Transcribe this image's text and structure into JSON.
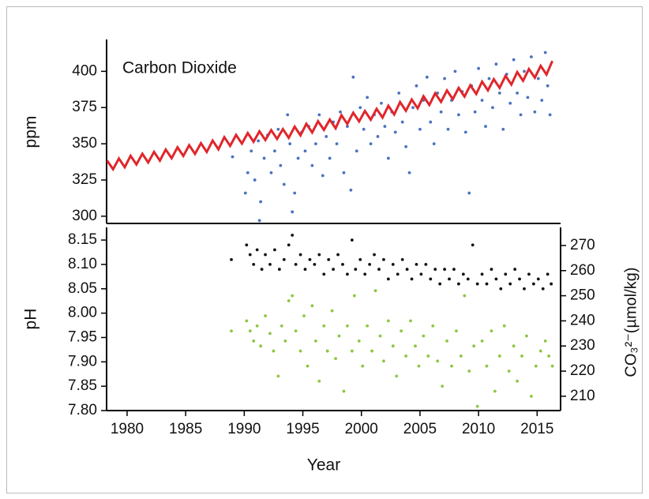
{
  "chart_data": [
    {
      "type": "scatter",
      "annotation": "Carbon Dioxide",
      "ylabel": "ppm",
      "xlim": [
        1978.25,
        2017
      ],
      "ylim": [
        295,
        422
      ],
      "yticks": [
        300,
        325,
        350,
        375,
        400
      ],
      "series": [
        {
          "mode": "line",
          "color": "#e0262b",
          "x": [
            1978.3,
            1978.8,
            1979.3,
            1979.8,
            1980.3,
            1980.8,
            1981.3,
            1981.8,
            1982.3,
            1982.8,
            1983.3,
            1983.8,
            1984.3,
            1984.8,
            1985.3,
            1985.8,
            1986.3,
            1986.8,
            1987.3,
            1987.8,
            1988.3,
            1988.8,
            1989.3,
            1989.8,
            1990.3,
            1990.8,
            1991.3,
            1991.8,
            1992.3,
            1992.8,
            1993.3,
            1993.8,
            1994.3,
            1994.8,
            1995.3,
            1995.8,
            1996.3,
            1996.8,
            1997.3,
            1997.8,
            1998.3,
            1998.8,
            1999.3,
            1999.8,
            2000.3,
            2000.8,
            2001.3,
            2001.8,
            2002.3,
            2002.8,
            2003.3,
            2003.8,
            2004.3,
            2004.8,
            2005.3,
            2005.8,
            2006.3,
            2006.8,
            2007.3,
            2007.8,
            2008.3,
            2008.8,
            2009.3,
            2009.8,
            2010.3,
            2010.8,
            2011.3,
            2011.8,
            2012.3,
            2012.8,
            2013.3,
            2013.8,
            2014.3,
            2014.8,
            2015.3,
            2015.8,
            2016.3
          ],
          "values": [
            338.4,
            332.4,
            339.8,
            333.8,
            341.7,
            335.7,
            343.1,
            337.1,
            344.4,
            338.4,
            346.0,
            340.0,
            347.6,
            341.6,
            349.0,
            343.0,
            350.4,
            344.4,
            352.2,
            346.2,
            354.6,
            348.6,
            356.1,
            350.1,
            357.4,
            351.4,
            358.6,
            352.6,
            359.4,
            353.4,
            360.1,
            354.1,
            361.8,
            355.8,
            363.8,
            357.8,
            365.6,
            359.6,
            366.7,
            360.7,
            369.7,
            363.7,
            371.4,
            365.4,
            372.6,
            366.6,
            374.1,
            368.1,
            376.2,
            370.2,
            378.8,
            372.8,
            380.5,
            374.5,
            382.8,
            376.8,
            384.9,
            378.9,
            386.8,
            380.8,
            388.6,
            382.6,
            390.4,
            384.4,
            392.9,
            386.9,
            394.6,
            388.6,
            396.9,
            390.9,
            399.5,
            393.5,
            401.6,
            395.6,
            403.8,
            397.8,
            407.2
          ]
        },
        {
          "mode": "points",
          "color": "#4a72c0",
          "x": [
            1989.0,
            1990.1,
            1990.3,
            1990.6,
            1990.9,
            1991.2,
            1991.3,
            1991.4,
            1991.7,
            1992.0,
            1992.3,
            1992.6,
            1992.9,
            1993.1,
            1993.4,
            1993.7,
            1993.9,
            1994.1,
            1994.3,
            1994.6,
            1994.9,
            1995.2,
            1995.5,
            1995.8,
            1996.1,
            1996.4,
            1996.7,
            1997.0,
            1997.3,
            1997.6,
            1997.9,
            1998.2,
            1998.5,
            1998.8,
            1999.1,
            1999.3,
            1999.6,
            1999.9,
            2000.2,
            2000.5,
            2000.8,
            2001.1,
            2001.4,
            2001.7,
            2002.0,
            2002.3,
            2002.6,
            2002.9,
            2003.2,
            2003.5,
            2003.8,
            2004.1,
            2004.4,
            2004.7,
            2005.0,
            2005.3,
            2005.6,
            2005.9,
            2006.2,
            2006.5,
            2006.8,
            2007.1,
            2007.4,
            2007.7,
            2008.0,
            2008.3,
            2008.6,
            2008.9,
            2009.2,
            2009.4,
            2009.7,
            2010.0,
            2010.3,
            2010.6,
            2010.9,
            2011.2,
            2011.5,
            2011.8,
            2012.1,
            2012.4,
            2012.7,
            2013.0,
            2013.3,
            2013.6,
            2013.9,
            2014.2,
            2014.5,
            2014.8,
            2015.1,
            2015.4,
            2015.7,
            2015.9,
            2016.1
          ],
          "values": [
            341,
            316,
            330,
            345,
            325,
            352,
            297,
            310,
            340,
            356,
            330,
            345,
            360,
            335,
            322,
            370,
            350,
            303,
            316,
            340,
            358,
            345,
            362,
            335,
            350,
            370,
            328,
            355,
            340,
            365,
            350,
            372,
            330,
            362,
            318,
            396,
            345,
            375,
            360,
            382,
            350,
            370,
            355,
            378,
            362,
            340,
            372,
            358,
            385,
            365,
            348,
            330,
            375,
            390,
            360,
            380,
            396,
            365,
            350,
            385,
            372,
            395,
            360,
            380,
            400,
            370,
            386,
            358,
            316,
            390,
            372,
            402,
            380,
            362,
            395,
            375,
            405,
            385,
            360,
            398,
            378,
            408,
            385,
            370,
            400,
            382,
            410,
            372,
            395,
            380,
            413,
            390,
            370
          ]
        }
      ]
    },
    {
      "type": "scatter",
      "ylabel": "pH",
      "y2label": "CO₃²⁻(µmol/kg)",
      "xlabel": "Year",
      "xlim": [
        1978.25,
        2017
      ],
      "xticks": [
        1980,
        1985,
        1990,
        1995,
        2000,
        2005,
        2010,
        2015
      ],
      "ylim": [
        7.8,
        8.176
      ],
      "yticks": [
        {
          "value": 7.8,
          "label": "7.80"
        },
        7.85,
        {
          "value": 7.9,
          "label": "7.90"
        },
        7.95,
        {
          "value": 8.0,
          "label": "8.00"
        },
        8.05,
        {
          "value": 8.1,
          "label": "8.10"
        },
        8.15
      ],
      "y2lim": [
        204.3,
        277.2
      ],
      "y2ticks": [
        210,
        220,
        230,
        240,
        250,
        260,
        270
      ],
      "y2color": "#4a9e20",
      "series": [
        {
          "mode": "points",
          "color": "#111111",
          "x": [
            1988.9,
            1990.2,
            1990.5,
            1990.8,
            1991.1,
            1991.5,
            1991.8,
            1992.2,
            1992.6,
            1993.0,
            1993.4,
            1993.8,
            1994.1,
            1994.4,
            1994.8,
            1995.2,
            1995.6,
            1996.0,
            1996.4,
            1996.8,
            1997.2,
            1997.6,
            1998.0,
            1998.4,
            1998.8,
            1999.2,
            1999.5,
            1999.9,
            2000.3,
            2000.7,
            2001.1,
            2001.5,
            2001.9,
            2002.3,
            2002.7,
            2003.1,
            2003.5,
            2003.9,
            2004.3,
            2004.7,
            2005.1,
            2005.5,
            2005.9,
            2006.3,
            2006.7,
            2007.1,
            2007.5,
            2007.9,
            2008.3,
            2008.7,
            2009.1,
            2009.5,
            2009.9,
            2010.3,
            2010.7,
            2011.1,
            2011.5,
            2011.9,
            2012.3,
            2012.7,
            2013.1,
            2013.5,
            2013.9,
            2014.3,
            2014.7,
            2015.1,
            2015.5,
            2015.9,
            2016.2
          ],
          "values": [
            8.11,
            8.14,
            8.12,
            8.1,
            8.13,
            8.09,
            8.12,
            8.1,
            8.13,
            8.09,
            8.11,
            8.14,
            8.16,
            8.1,
            8.12,
            8.09,
            8.11,
            8.1,
            8.12,
            8.08,
            8.11,
            8.09,
            8.12,
            8.1,
            8.08,
            8.15,
            8.09,
            8.11,
            8.08,
            8.1,
            8.12,
            8.09,
            8.11,
            8.07,
            8.1,
            8.08,
            8.11,
            8.09,
            8.07,
            8.1,
            8.08,
            8.1,
            8.07,
            8.09,
            8.06,
            8.09,
            8.07,
            8.09,
            8.06,
            8.08,
            8.07,
            8.14,
            8.06,
            8.08,
            8.06,
            8.09,
            8.07,
            8.05,
            8.08,
            8.06,
            8.09,
            8.07,
            8.05,
            8.08,
            8.06,
            8.07,
            8.05,
            8.08,
            8.06
          ]
        },
        {
          "mode": "points",
          "color": "#8dc641",
          "axis": "y2",
          "x": [
            1988.9,
            1990.2,
            1990.5,
            1990.8,
            1991.1,
            1991.4,
            1991.8,
            1992.2,
            1992.5,
            1992.9,
            1993.2,
            1993.5,
            1993.8,
            1994.1,
            1994.4,
            1994.8,
            1995.1,
            1995.4,
            1995.8,
            1996.1,
            1996.4,
            1996.8,
            1997.1,
            1997.5,
            1997.8,
            1998.1,
            1998.5,
            1998.8,
            1999.2,
            1999.4,
            1999.8,
            2000.1,
            2000.5,
            2000.9,
            2001.2,
            2001.6,
            2001.9,
            2002.3,
            2002.7,
            2003.0,
            2003.4,
            2003.8,
            2004.2,
            2004.6,
            2004.9,
            2005.3,
            2005.7,
            2006.1,
            2006.5,
            2006.9,
            2007.3,
            2007.7,
            2008.1,
            2008.5,
            2008.8,
            2009.2,
            2009.6,
            2009.9,
            2010.3,
            2010.7,
            2011.1,
            2011.4,
            2011.8,
            2012.2,
            2012.6,
            2013.0,
            2013.3,
            2013.7,
            2014.1,
            2014.5,
            2014.9,
            2015.3,
            2015.7,
            2016.0,
            2016.3
          ],
          "values": [
            236,
            240,
            236,
            232,
            238,
            230,
            242,
            235,
            228,
            218,
            238,
            232,
            248,
            250,
            236,
            228,
            242,
            222,
            246,
            232,
            216,
            238,
            228,
            244,
            225,
            234,
            212,
            238,
            228,
            250,
            232,
            222,
            238,
            228,
            252,
            234,
            224,
            240,
            230,
            218,
            236,
            226,
            240,
            230,
            222,
            234,
            226,
            238,
            224,
            214,
            232,
            222,
            236,
            226,
            250,
            220,
            230,
            206,
            232,
            222,
            236,
            212,
            226,
            238,
            220,
            230,
            216,
            226,
            234,
            210,
            222,
            228,
            232,
            226,
            222
          ]
        }
      ]
    }
  ]
}
